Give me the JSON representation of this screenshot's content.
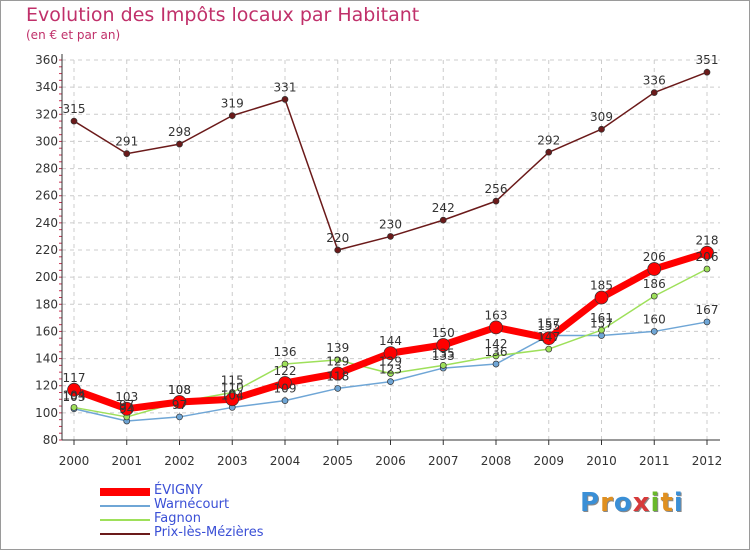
{
  "title": "Evolution des Impôts locaux par Habitant",
  "subtitle": "(en € et par an)",
  "logo": {
    "letters": [
      "P",
      "r",
      "o",
      "x",
      "i",
      "t",
      "i"
    ],
    "colors": [
      "#3a8fd6",
      "#e09020",
      "#3a8fd6",
      "#d63a3a",
      "#6ab82a",
      "#e09020",
      "#3a8fd6"
    ]
  },
  "chart_data": {
    "type": "line",
    "title": "Evolution des Impôts locaux par Habitant",
    "subtitle": "(en € et par an)",
    "x": [
      "2000",
      "2001",
      "2002",
      "2003",
      "2004",
      "2005",
      "2006",
      "2007",
      "2008",
      "2009",
      "2010",
      "2011",
      "2012"
    ],
    "yticks": [
      "360",
      "340",
      "320",
      "300",
      "280",
      "260",
      "240",
      "220",
      "200",
      "180",
      "160",
      "140",
      "120",
      "100",
      "80"
    ],
    "ylim": [
      80,
      360
    ],
    "grid": true,
    "legend_position": "bottom-left",
    "series": [
      {
        "name": "Prix-lès-Mézières",
        "color": "#6b1a1a",
        "values": [
          315,
          291,
          298,
          319,
          331,
          220,
          230,
          242,
          256,
          292,
          309,
          336,
          351
        ],
        "labels": [
          "315",
          "291",
          "298",
          "319",
          "331",
          "220",
          "230",
          "242",
          "256",
          "292",
          "309",
          "336",
          "351"
        ]
      },
      {
        "name": "Warnécourt",
        "color": "#6fa6d6",
        "values": [
          103,
          94,
          97,
          104,
          109,
          118,
          123,
          133,
          136,
          157,
          157,
          160,
          167
        ],
        "labels": [
          "103",
          "94",
          "97",
          "104",
          "109",
          "118",
          "123",
          "133",
          "136",
          "157",
          "157",
          "160",
          "167"
        ]
      },
      {
        "name": "Fagnon",
        "color": "#9ee05a",
        "values": [
          104,
          97,
          108,
          115,
          136,
          139,
          129,
          135,
          142,
          147,
          161,
          186,
          206
        ],
        "labels": [
          "104",
          "97",
          "108",
          "115",
          "136",
          "139",
          "129",
          "135",
          "142",
          "147",
          "161",
          "186",
          "206"
        ]
      },
      {
        "name": "ÉVIGNY",
        "color": "#ff0000",
        "values": [
          117,
          103,
          108,
          110,
          122,
          129,
          144,
          150,
          163,
          155,
          185,
          206,
          218
        ],
        "labels": [
          "117",
          "103",
          "108",
          "110",
          "122",
          "129",
          "144",
          "150",
          "163",
          "155",
          "185",
          "206",
          "218"
        ]
      }
    ],
    "legend_order": [
      "ÉVIGNY",
      "Warnécourt",
      "Fagnon",
      "Prix-lès-Mézières"
    ]
  }
}
